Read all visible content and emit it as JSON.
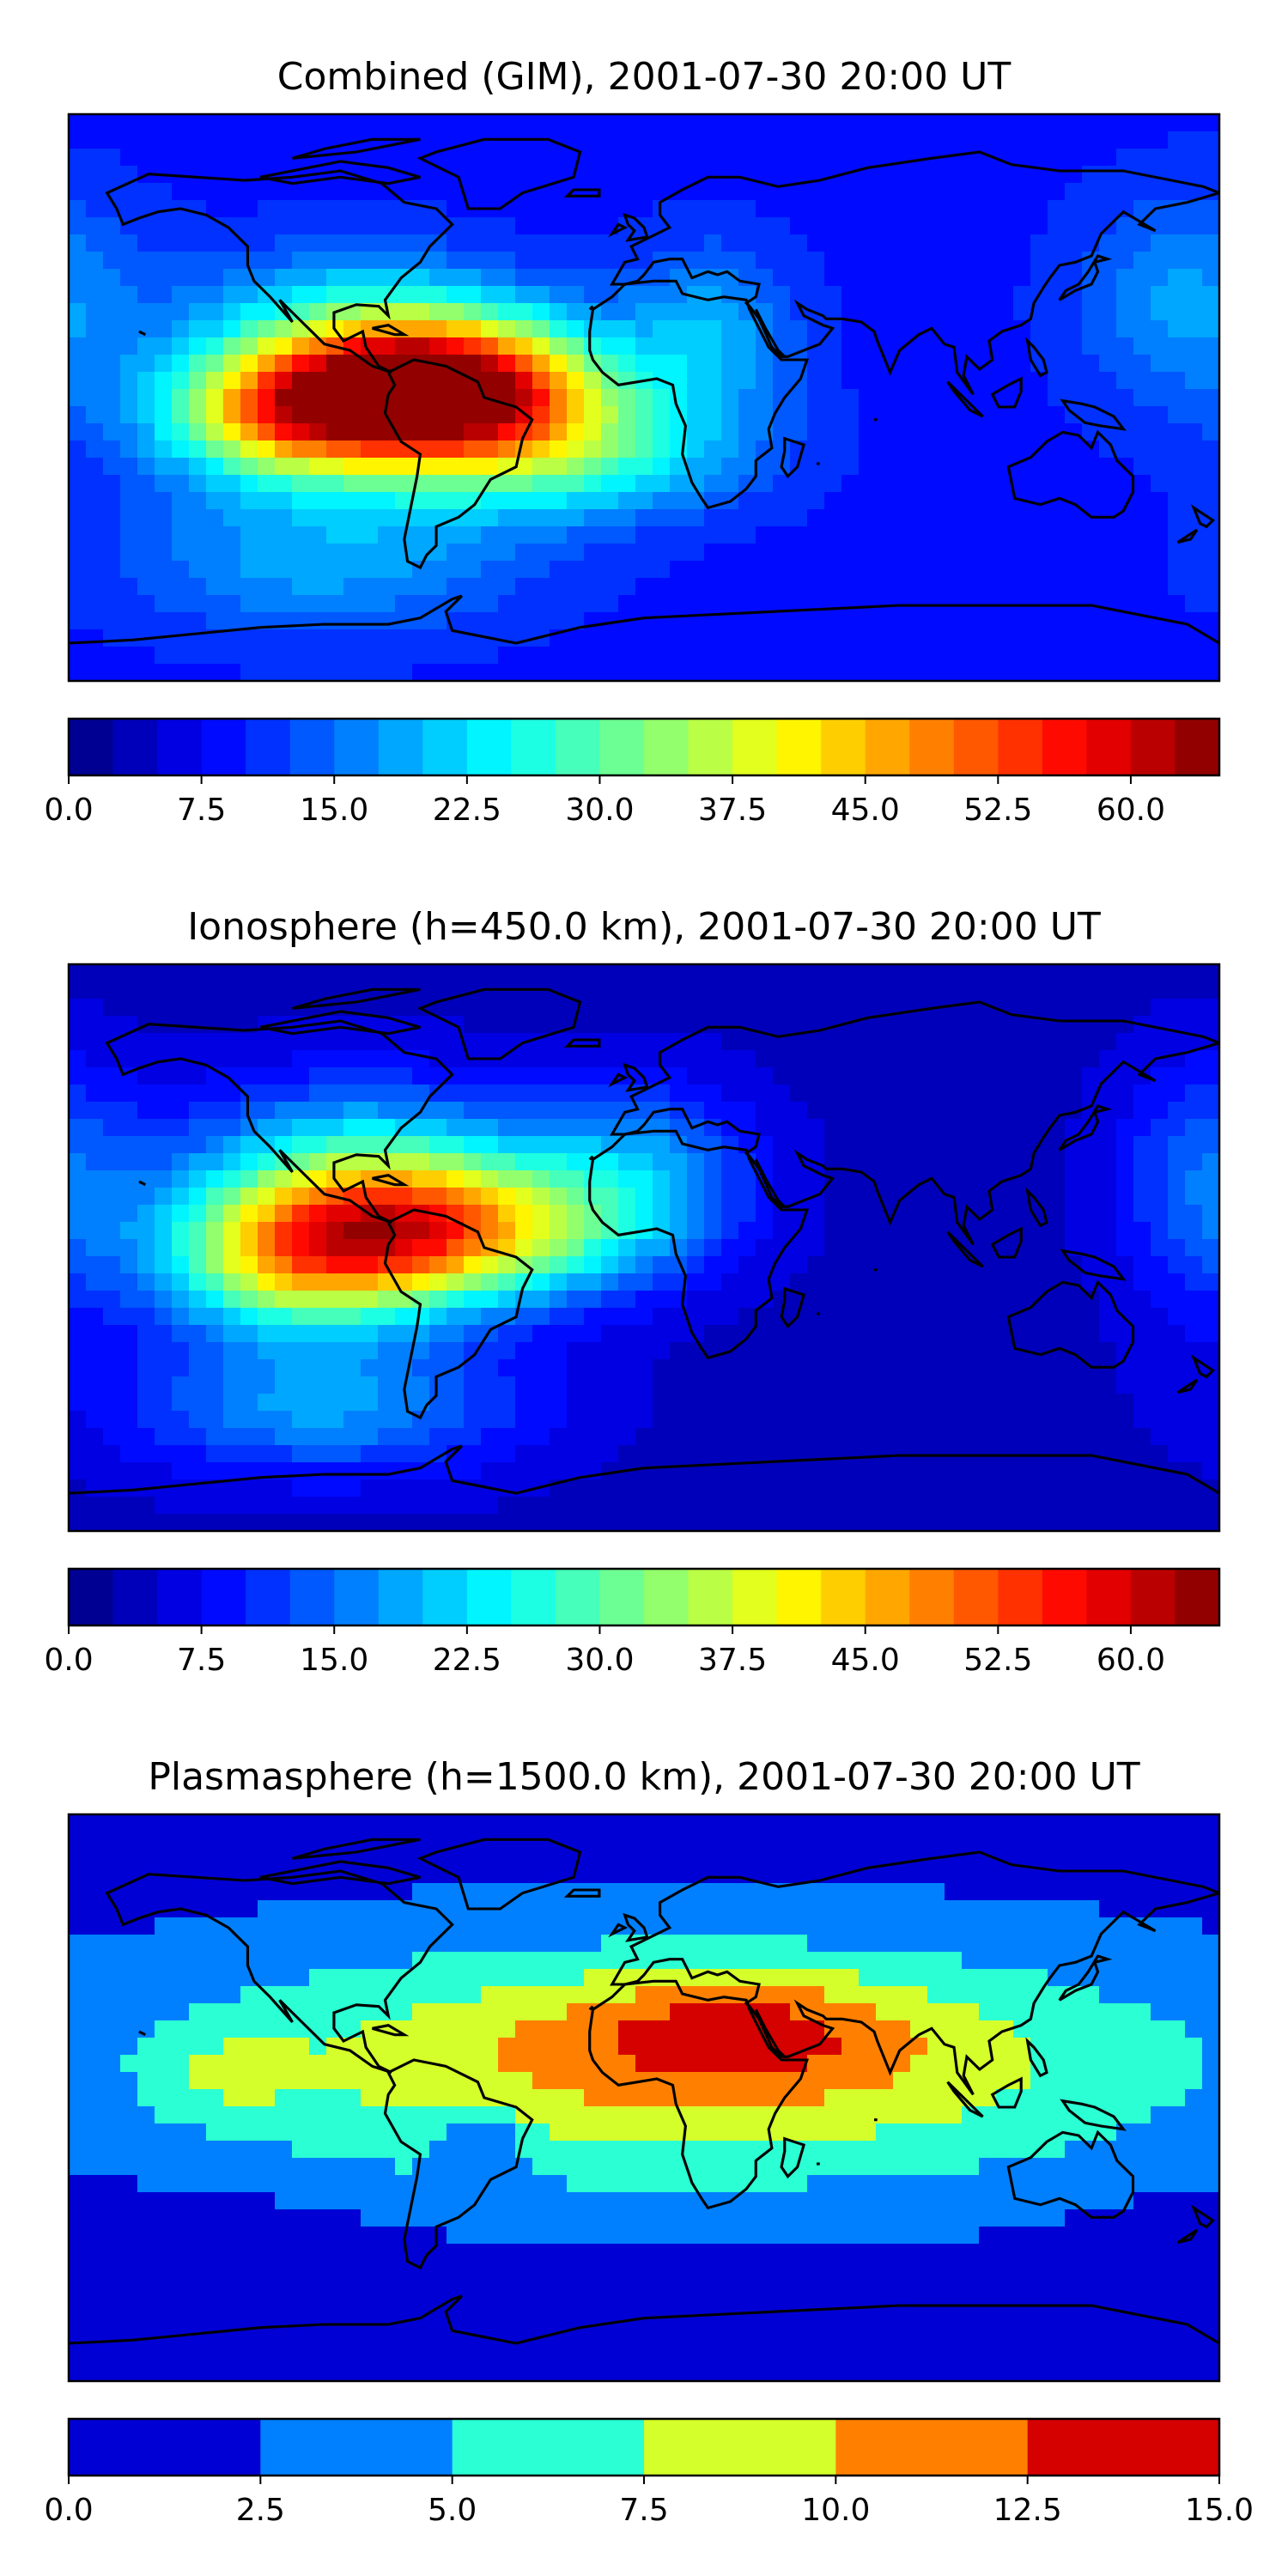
{
  "panels": [
    {
      "id": "combined",
      "title": "Combined (GIM), 2001-07-30 20:00 UT",
      "colorbar": {
        "min": 0,
        "max": 65,
        "step": 2.5,
        "tick_labels": [
          "0.0",
          "7.5",
          "15.0",
          "22.5",
          "30.0",
          "37.5",
          "45.0",
          "52.5",
          "60.0"
        ],
        "tick_values": [
          0,
          7.5,
          15,
          22.5,
          30,
          37.5,
          45,
          52.5,
          60
        ]
      },
      "field": {
        "background": 9,
        "blobs": [
          {
            "lon": -60,
            "lat": 3,
            "amp": 52,
            "slon": 32,
            "slat": 15
          },
          {
            "lon": -110,
            "lat": -5,
            "amp": 35,
            "slon": 28,
            "slat": 14
          },
          {
            "lon": -30,
            "lat": -18,
            "amp": 18,
            "slon": 40,
            "slat": 14
          },
          {
            "lon": -90,
            "lat": 20,
            "amp": 16,
            "slon": 35,
            "slat": 18
          },
          {
            "lon": -100,
            "lat": -50,
            "amp": 10,
            "slon": 45,
            "slat": 18
          },
          {
            "lon": 20,
            "lat": 20,
            "amp": 10,
            "slon": 20,
            "slat": 20
          },
          {
            "lon": 170,
            "lat": 30,
            "amp": 9,
            "slon": 25,
            "slat": 25
          }
        ]
      }
    },
    {
      "id": "ionosphere",
      "title": "Ionosphere  (h=450.0 km), 2001-07-30 20:00 UT",
      "colorbar": {
        "min": 0,
        "max": 65,
        "step": 2.5,
        "tick_labels": [
          "0.0",
          "7.5",
          "15.0",
          "22.5",
          "30.0",
          "37.5",
          "45.0",
          "52.5",
          "60.0"
        ],
        "tick_values": [
          0,
          7.5,
          15,
          22.5,
          30,
          37.5,
          45,
          52.5,
          60
        ]
      },
      "field": {
        "background": 4,
        "blobs": [
          {
            "lon": -65,
            "lat": 5,
            "amp": 38,
            "slon": 40,
            "slat": 16
          },
          {
            "lon": -110,
            "lat": -5,
            "amp": 26,
            "slon": 30,
            "slat": 16
          },
          {
            "lon": -90,
            "lat": 25,
            "amp": 18,
            "slon": 40,
            "slat": 20
          },
          {
            "lon": -100,
            "lat": -50,
            "amp": 14,
            "slon": 45,
            "slat": 16
          },
          {
            "lon": 0,
            "lat": 25,
            "amp": 12,
            "slon": 25,
            "slat": 20
          },
          {
            "lon": 175,
            "lat": 20,
            "amp": 10,
            "slon": 20,
            "slat": 28
          }
        ]
      }
    },
    {
      "id": "plasmasphere",
      "title": "Plasmasphere (h=1500.0 km), 2001-07-30 20:00 UT",
      "colorbar": {
        "min": 0,
        "max": 15,
        "step": 2.5,
        "tick_labels": [
          "0.0",
          "2.5",
          "5.0",
          "7.5",
          "10.0",
          "12.5",
          "15.0"
        ],
        "tick_values": [
          0,
          2.5,
          5,
          7.5,
          10,
          12.5,
          15
        ]
      },
      "field": {
        "background": 1.5,
        "blobs": [
          {
            "lon": 10,
            "lat": 10,
            "amp": 9,
            "slon": 120,
            "slat": 28
          },
          {
            "lon": 30,
            "lat": 22,
            "amp": 4.5,
            "slon": 38,
            "slat": 12
          },
          {
            "lon": -130,
            "lat": 8,
            "amp": 2.5,
            "slon": 15,
            "slat": 10
          },
          {
            "lon": -50,
            "lat": -15,
            "amp": -4,
            "slon": 10,
            "slat": 8
          },
          {
            "lon": -150,
            "lat": -45,
            "amp": -2,
            "slon": 40,
            "slat": 10
          }
        ]
      }
    }
  ],
  "colormap": "jet"
}
